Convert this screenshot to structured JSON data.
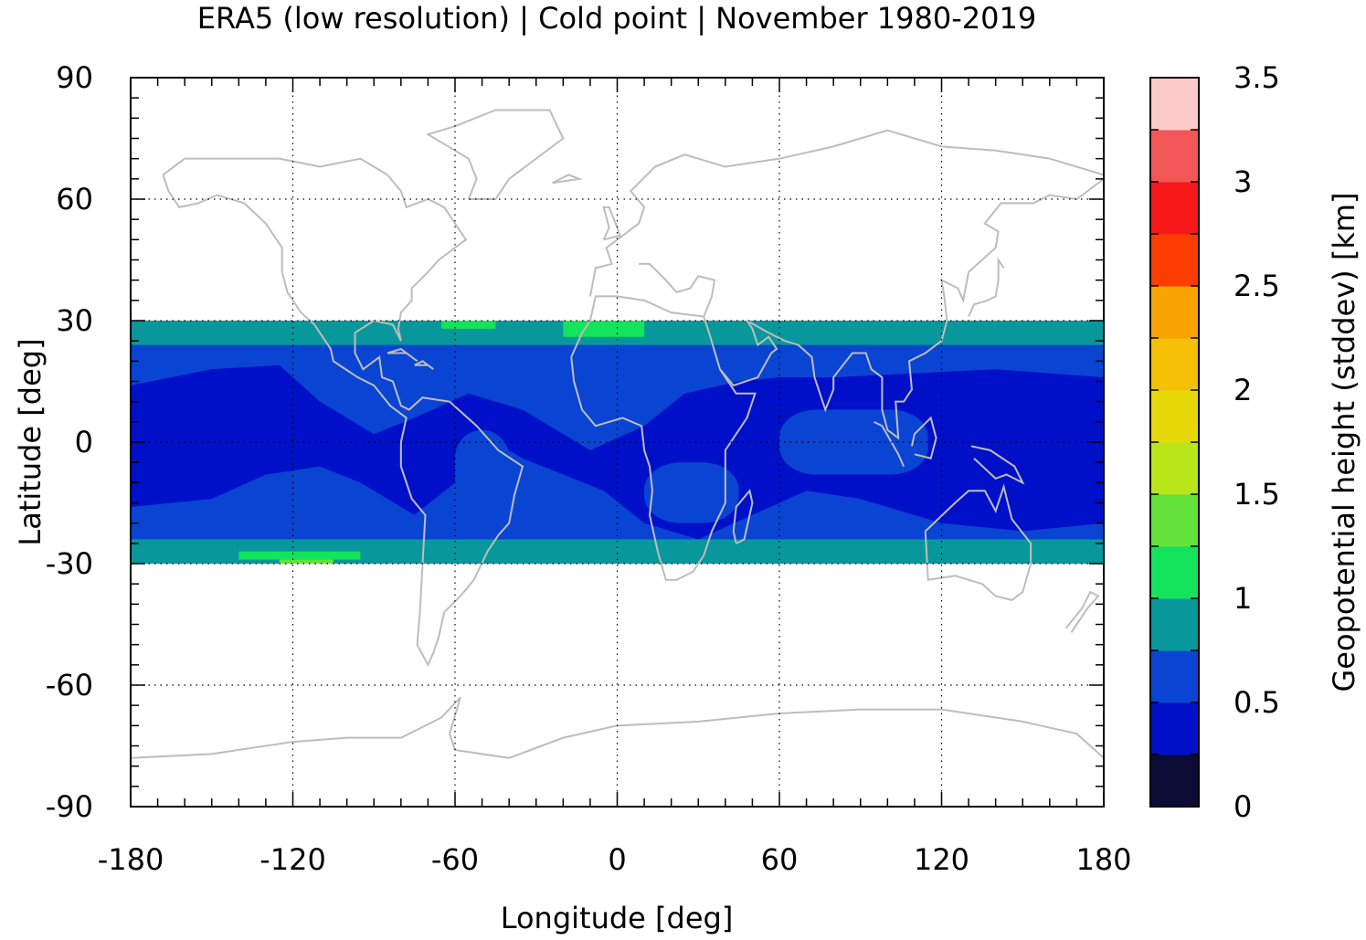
{
  "chart_data": {
    "type": "heatmap",
    "title": "ERA5 (low resolution) | Cold point | November 1980-2019",
    "xlabel": "Longitude [deg]",
    "ylabel": "Latitude [deg]",
    "xlim": [
      -180,
      180
    ],
    "ylim": [
      -90,
      90
    ],
    "x_ticks": [
      {
        "value": -180,
        "label": "-180"
      },
      {
        "value": -120,
        "label": "-120"
      },
      {
        "value": -60,
        "label": "-60"
      },
      {
        "value": 0,
        "label": "0"
      },
      {
        "value": 60,
        "label": "60"
      },
      {
        "value": 120,
        "label": "120"
      },
      {
        "value": 180,
        "label": "180"
      }
    ],
    "y_ticks": [
      {
        "value": 90,
        "label": "90"
      },
      {
        "value": 60,
        "label": "60"
      },
      {
        "value": 30,
        "label": "30"
      },
      {
        "value": 0,
        "label": "0"
      },
      {
        "value": -30,
        "label": "-30"
      },
      {
        "value": -60,
        "label": "-60"
      },
      {
        "value": -90,
        "label": "-90"
      }
    ],
    "grid": true,
    "data_lat_range": [
      -30,
      30
    ],
    "coastlines_color": "#bdbdbd",
    "colorbar": {
      "label": "Geopotential height (stddev) [km]",
      "range": [
        0,
        3.5
      ],
      "step": 0.25,
      "ticks": [
        {
          "value": 0,
          "label": "0"
        },
        {
          "value": 0.5,
          "label": "0.5"
        },
        {
          "value": 1,
          "label": "1"
        },
        {
          "value": 1.5,
          "label": "1.5"
        },
        {
          "value": 2,
          "label": "2"
        },
        {
          "value": 2.5,
          "label": "2.5"
        },
        {
          "value": 3,
          "label": "3"
        },
        {
          "value": 3.5,
          "label": "3.5"
        }
      ],
      "colors": [
        "#0b0b35",
        "#0010c8",
        "#0a44d2",
        "#08979b",
        "#14e35c",
        "#62e23a",
        "#b9e61a",
        "#e7d80a",
        "#f4bf05",
        "#f7a302",
        "#fc3c00",
        "#f61818",
        "#f25656",
        "#fdcaca"
      ]
    },
    "bands": [
      {
        "lat": [
          -30,
          30
        ],
        "level": 0.5,
        "color": "#0a44d2"
      },
      {
        "lat": [
          -22,
          22
        ],
        "level": 0.25,
        "color": "#0010c8"
      }
    ],
    "patches": [
      {
        "lon": [
          -180,
          180
        ],
        "lat": [
          24,
          30
        ],
        "level": 0.75,
        "color": "#08979b"
      },
      {
        "lon": [
          -180,
          180
        ],
        "lat": [
          -30,
          -24
        ],
        "level": 0.75,
        "color": "#08979b"
      },
      {
        "lon": [
          -20,
          10
        ],
        "lat": [
          26,
          30
        ],
        "level": 1.0,
        "color": "#14e35c"
      },
      {
        "lon": [
          -65,
          -45
        ],
        "lat": [
          28,
          30
        ],
        "level": 1.0,
        "color": "#14e35c"
      },
      {
        "lon": [
          -140,
          -95
        ],
        "lat": [
          -29,
          -27
        ],
        "level": 1.0,
        "color": "#14e35c"
      },
      {
        "lon": [
          -125,
          -105
        ],
        "lat": [
          -30,
          -29
        ],
        "level": 1.25,
        "color": "#62e23a"
      },
      {
        "lon": [
          -60,
          -40
        ],
        "lat": [
          -20,
          3
        ],
        "level": 0.5,
        "color": "#0a44d2"
      },
      {
        "lon": [
          10,
          45
        ],
        "lat": [
          -20,
          -5
        ],
        "level": 0.5,
        "color": "#0a44d2"
      },
      {
        "lon": [
          60,
          115
        ],
        "lat": [
          -8,
          8
        ],
        "level": 0.5,
        "color": "#0a44d2"
      }
    ]
  }
}
